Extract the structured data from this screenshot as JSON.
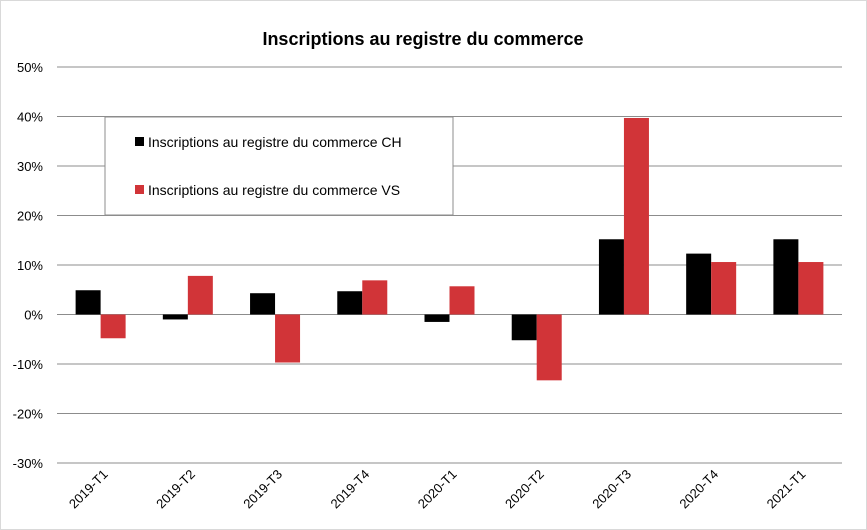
{
  "chart_data": {
    "type": "bar",
    "title": "Inscriptions au registre du commerce",
    "xlabel": "",
    "ylabel": "",
    "categories": [
      "2019-T1",
      "2019-T2",
      "2019-T3",
      "2019-T4",
      "2020-T1",
      "2020-T2",
      "2020-T3",
      "2020-T4",
      "2021-T1"
    ],
    "series": [
      {
        "name": "Inscriptions au registre du commerce CH",
        "color": "#000000",
        "values": [
          4.9,
          -1.0,
          4.3,
          4.7,
          -1.5,
          -5.2,
          15.2,
          12.3,
          15.2
        ]
      },
      {
        "name": "Inscriptions au registre du commerce VS",
        "color": "#d13438",
        "values": [
          -4.8,
          7.8,
          -9.7,
          6.9,
          5.7,
          -13.3,
          39.7,
          10.6,
          10.6
        ]
      }
    ],
    "ylim": [
      -30,
      50
    ],
    "yticks": [
      -30,
      -20,
      -10,
      0,
      10,
      20,
      30,
      40,
      50
    ],
    "ytick_labels": [
      "-30%",
      "-20%",
      "-10%",
      "0%",
      "10%",
      "20%",
      "30%",
      "40%",
      "50%"
    ],
    "grid": true,
    "legend_position": "top-left"
  }
}
